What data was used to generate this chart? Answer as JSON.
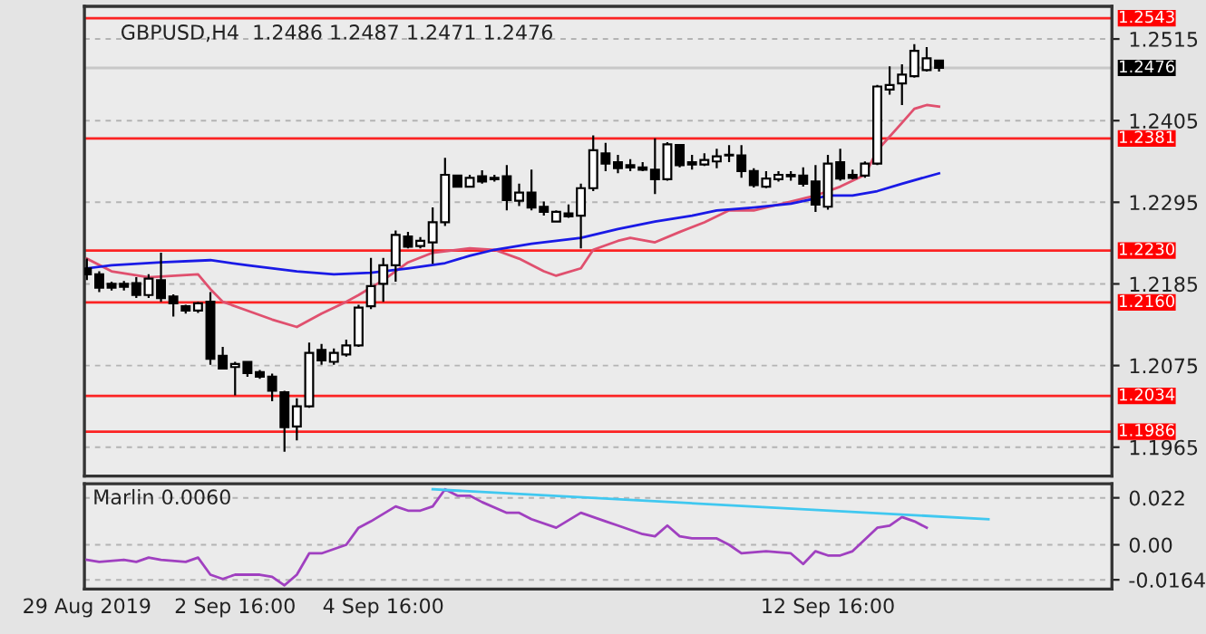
{
  "chart_data": [
    {
      "type": "candlestick",
      "title": "GBPUSD,H4  1.2486 1.2487 1.2471 1.2476",
      "categories": [
        null,
        null,
        null,
        null,
        null,
        null,
        null,
        null,
        null,
        null,
        null,
        null,
        null,
        null,
        null,
        null,
        null,
        null,
        null,
        null,
        null,
        null,
        null,
        null,
        null,
        null,
        null,
        null,
        null,
        null,
        null,
        null,
        null,
        null,
        null,
        null,
        null,
        null,
        null,
        null,
        null,
        null,
        null,
        null,
        null,
        null,
        null,
        null,
        null,
        null,
        null,
        null,
        null,
        null,
        null,
        null,
        null,
        null,
        null,
        null,
        null,
        null,
        null,
        null,
        null,
        null,
        null,
        null,
        null,
        null,
        null,
        null,
        null,
        null,
        null,
        null,
        null,
        null,
        null,
        null,
        null,
        null,
        null,
        null
      ],
      "ohlc": [
        [
          1.2206,
          1.2219,
          1.219,
          1.2198
        ],
        [
          1.2198,
          1.2202,
          1.2174,
          1.218
        ],
        [
          1.2185,
          1.2188,
          1.2176,
          1.218
        ],
        [
          1.2185,
          1.2189,
          1.2176,
          1.2181
        ],
        [
          1.2186,
          1.2194,
          1.2166,
          1.217
        ],
        [
          1.217,
          1.2198,
          1.2166,
          1.2192
        ],
        [
          1.219,
          1.2227,
          1.2161,
          1.2166
        ],
        [
          1.2168,
          1.2171,
          1.2141,
          1.2159
        ],
        [
          1.2155,
          1.2157,
          1.2145,
          1.2149
        ],
        [
          1.2149,
          1.2161,
          1.2146,
          1.2159
        ],
        [
          1.2161,
          1.2174,
          1.2076,
          1.2084
        ],
        [
          1.2088,
          1.21,
          1.207,
          1.2071
        ],
        [
          1.2073,
          1.208,
          1.2035,
          1.2077
        ],
        [
          1.208,
          1.208,
          1.206,
          1.2065
        ],
        [
          1.2066,
          1.2069,
          1.2057,
          1.206
        ],
        [
          1.206,
          1.2064,
          1.2027,
          1.2041
        ],
        [
          1.2039,
          1.2041,
          1.1959,
          1.1992
        ],
        [
          1.1993,
          1.2031,
          1.1974,
          1.202
        ],
        [
          1.202,
          1.2106,
          1.2018,
          1.2092
        ],
        [
          1.2096,
          1.2104,
          1.2076,
          1.2082
        ],
        [
          1.208,
          1.2098,
          1.2076,
          1.2092
        ],
        [
          1.209,
          1.211,
          1.2087,
          1.2102
        ],
        [
          1.2102,
          1.2157,
          1.21,
          1.2153
        ],
        [
          1.2155,
          1.222,
          1.2151,
          1.2182
        ],
        [
          1.2185,
          1.222,
          1.2161,
          1.221
        ],
        [
          1.221,
          1.2257,
          1.2188,
          1.2251
        ],
        [
          1.2249,
          1.2255,
          1.2233,
          1.2235
        ],
        [
          1.2236,
          1.2248,
          1.2233,
          1.2243
        ],
        [
          1.2241,
          1.2288,
          1.2212,
          1.2268
        ],
        [
          1.2268,
          1.2355,
          1.2263,
          1.2332
        ],
        [
          1.2331,
          1.2332,
          1.2315,
          1.2316
        ],
        [
          1.2316,
          1.2332,
          1.2315,
          1.2328
        ],
        [
          1.233,
          1.2338,
          1.232,
          1.2323
        ],
        [
          1.2328,
          1.2332,
          1.2323,
          1.2326
        ],
        [
          1.233,
          1.2345,
          1.2284,
          1.2298
        ],
        [
          1.2297,
          1.232,
          1.229,
          1.2308
        ],
        [
          1.2308,
          1.2339,
          1.2284,
          1.2288
        ],
        [
          1.2289,
          1.2296,
          1.2277,
          1.2282
        ],
        [
          1.2269,
          1.2284,
          1.2268,
          1.2282
        ],
        [
          1.228,
          1.2292,
          1.2274,
          1.2276
        ],
        [
          1.2277,
          1.232,
          1.2233,
          1.2314
        ],
        [
          1.2314,
          1.2385,
          1.231,
          1.2365
        ],
        [
          1.2361,
          1.2375,
          1.2337,
          1.2347
        ],
        [
          1.2349,
          1.2359,
          1.2334,
          1.2341
        ],
        [
          1.2345,
          1.2353,
          1.2337,
          1.2342
        ],
        [
          1.2342,
          1.2349,
          1.2337,
          1.2339
        ],
        [
          1.2339,
          1.2381,
          1.2306,
          1.2326
        ],
        [
          1.2326,
          1.2376,
          1.2324,
          1.2373
        ],
        [
          1.2372,
          1.2373,
          1.2342,
          1.2345
        ],
        [
          1.2349,
          1.2359,
          1.2339,
          1.2346
        ],
        [
          1.2346,
          1.2361,
          1.2344,
          1.2352
        ],
        [
          1.235,
          1.2367,
          1.2341,
          1.2357
        ],
        [
          1.2358,
          1.2372,
          1.2349,
          1.2359
        ],
        [
          1.2358,
          1.2372,
          1.2328,
          1.2337
        ],
        [
          1.2337,
          1.2341,
          1.2315,
          1.2318
        ],
        [
          1.2316,
          1.2337,
          1.2314,
          1.2327
        ],
        [
          1.2326,
          1.2337,
          1.2323,
          1.2332
        ],
        [
          1.2332,
          1.2337,
          1.2324,
          1.233
        ],
        [
          1.2331,
          1.2342,
          1.2316,
          1.232
        ],
        [
          1.2323,
          1.2345,
          1.2282,
          1.2292
        ],
        [
          1.2289,
          1.2359,
          1.2285,
          1.2347
        ],
        [
          1.2349,
          1.2367,
          1.2324,
          1.2327
        ],
        [
          1.2332,
          1.2339,
          1.2326,
          1.2328
        ],
        [
          1.2331,
          1.235,
          1.2328,
          1.2347
        ],
        [
          1.2347,
          1.2453,
          1.2345,
          1.2451
        ],
        [
          1.2447,
          1.2478,
          1.244,
          1.2453
        ],
        [
          1.2455,
          1.2481,
          1.2426,
          1.2467
        ],
        [
          1.2465,
          1.2508,
          1.2463,
          1.2499
        ],
        [
          1.2473,
          1.2504,
          1.2471,
          1.2489
        ],
        [
          1.2486,
          1.2487,
          1.2471,
          1.2476
        ],
        null,
        null,
        null,
        null,
        null,
        null,
        null,
        null,
        null,
        null,
        null,
        null,
        null,
        null
      ],
      "series": [
        {
          "type": "line",
          "color": "#e0506e",
          "values": [
            1.2219,
            null,
            1.2202,
            null,
            null,
            1.2194,
            null,
            null,
            null,
            1.2198,
            1.2178,
            1.2161,
            null,
            1.2149,
            null,
            1.2137,
            null,
            1.2127,
            null,
            1.2145,
            null,
            1.2161,
            1.217,
            null,
            1.219,
            null,
            1.2214,
            null,
            1.2227,
            null,
            null,
            1.2233,
            null,
            1.2231,
            null,
            1.2219,
            null,
            1.2202,
            1.2196,
            null,
            1.2206,
            1.2231,
            null,
            1.2243,
            1.2247,
            null,
            1.2241,
            null,
            1.2255,
            null,
            1.2268,
            null,
            1.2284,
            null,
            1.2284,
            null,
            null,
            1.2296,
            null,
            1.2304,
            null,
            1.2316,
            null,
            1.2332,
            1.2365,
            null,
            1.2402,
            1.2421,
            1.2426,
            1.2424,
            null,
            null,
            null,
            null,
            null,
            null,
            null,
            null,
            null,
            null,
            null,
            null,
            null,
            null
          ]
        },
        {
          "type": "line",
          "color": "#1a1ae6",
          "values": [
            1.2206,
            null,
            1.221,
            null,
            null,
            null,
            1.2214,
            null,
            null,
            null,
            1.2217,
            null,
            null,
            1.221,
            null,
            null,
            null,
            1.2202,
            null,
            null,
            1.2198,
            null,
            null,
            1.22,
            null,
            null,
            1.2206,
            null,
            null,
            1.2213,
            null,
            1.2223,
            null,
            1.2231,
            null,
            null,
            1.2239,
            null,
            null,
            null,
            1.2247,
            null,
            null,
            1.2259,
            null,
            null,
            1.2269,
            null,
            null,
            1.2277,
            null,
            1.2284,
            null,
            null,
            1.2288,
            null,
            null,
            1.2293,
            null,
            1.23,
            1.2304,
            null,
            1.2304,
            null,
            1.231,
            null,
            1.232,
            null,
            null,
            1.2334,
            null,
            null,
            null,
            null,
            null,
            null,
            null,
            null,
            null,
            null,
            null,
            null,
            null,
            null
          ]
        }
      ],
      "ref_lines": [
        {
          "axis": "y",
          "value": 1.2543,
          "label": "1.2543",
          "color": "#ff0000"
        },
        {
          "axis": "y",
          "value": 1.2381,
          "label": "1.2381",
          "color": "#ff0000"
        },
        {
          "axis": "y",
          "value": 1.223,
          "label": "1.2230",
          "color": "#ff0000"
        },
        {
          "axis": "y",
          "value": 1.216,
          "label": "1.2160",
          "color": "#ff0000"
        },
        {
          "axis": "y",
          "value": 1.2034,
          "label": "1.2034",
          "color": "#ff0000"
        },
        {
          "axis": "y",
          "value": 1.1986,
          "label": "1.1986",
          "color": "#ff0000"
        },
        {
          "axis": "y",
          "value": 1.2476,
          "label": "1.2476",
          "color": "#000000"
        }
      ],
      "ylim": [
        1.1926,
        1.2559
      ],
      "yticks": [
        1.1965,
        1.2075,
        1.2185,
        1.2295,
        1.2405,
        1.2515
      ],
      "grid": true,
      "tick_labels": "y"
    },
    {
      "type": "line",
      "annotations": [
        "Marlin 0.0060"
      ],
      "categories": [
        "29 Aug 2019",
        null,
        null,
        null,
        null,
        null,
        null,
        null,
        null,
        null,
        null,
        null,
        "2 Sep 16:00",
        null,
        null,
        null,
        null,
        null,
        null,
        null,
        null,
        null,
        null,
        null,
        "4 Sep 16:00",
        null,
        null,
        null,
        null,
        null,
        null,
        null,
        null,
        null,
        null,
        null,
        null,
        null,
        null,
        null,
        null,
        null,
        null,
        null,
        null,
        null,
        null,
        null,
        null,
        null,
        null,
        null,
        null,
        null,
        null,
        null,
        null,
        null,
        null,
        null,
        "12 Sep 16:00",
        null,
        null,
        null,
        null,
        null,
        null,
        null,
        null,
        null,
        null,
        null,
        null,
        null,
        null,
        null,
        null,
        null,
        null,
        null,
        null,
        null,
        null,
        null
      ],
      "series": [
        {
          "color": "#a040c0",
          "values": [
            -0.007,
            -0.008,
            null,
            -0.007,
            -0.008,
            -0.006,
            -0.007,
            null,
            -0.008,
            -0.006,
            -0.014,
            -0.016,
            -0.014,
            null,
            -0.014,
            -0.015,
            -0.019,
            -0.014,
            -0.004,
            -0.004,
            null,
            0.0,
            0.008,
            0.011,
            null,
            0.018,
            0.016,
            0.016,
            0.018,
            0.026,
            0.023,
            0.023,
            0.02,
            null,
            0.015,
            0.015,
            0.012,
            null,
            0.008,
            null,
            0.015,
            null,
            0.011,
            0.009,
            null,
            0.005,
            0.004,
            0.009,
            0.004,
            0.003,
            null,
            0.003,
            0.0,
            -0.004,
            null,
            -0.003,
            null,
            -0.004,
            -0.009,
            -0.003,
            -0.005,
            -0.005,
            -0.003,
            null,
            0.008,
            0.009,
            0.013,
            0.011,
            0.008,
            null,
            null,
            null,
            null,
            null,
            null,
            null,
            null,
            null,
            null,
            null,
            null,
            null,
            null,
            null
          ]
        },
        {
          "color": "#40c8f0",
          "values": [
            null,
            null,
            null,
            null,
            null,
            null,
            null,
            null,
            null,
            null,
            null,
            null,
            null,
            null,
            null,
            null,
            null,
            null,
            null,
            null,
            null,
            null,
            null,
            null,
            null,
            null,
            null,
            null,
            0.026,
            null,
            null,
            null,
            null,
            null,
            null,
            null,
            null,
            null,
            null,
            null,
            null,
            null,
            null,
            null,
            null,
            null,
            null,
            null,
            null,
            null,
            null,
            null,
            null,
            null,
            null,
            null,
            null,
            null,
            null,
            null,
            null,
            null,
            null,
            null,
            null,
            null,
            null,
            null,
            null,
            null,
            null,
            null,
            null,
            0.012,
            null,
            null,
            null,
            null,
            null,
            null,
            null,
            null,
            null,
            null
          ]
        }
      ],
      "ylim": [
        -0.0207,
        0.0286
      ],
      "yticks": [
        {
          "value": -0.0164,
          "label": "-0.0164"
        },
        {
          "value": 0,
          "label": "0.00"
        },
        0.022
      ],
      "grid": true
    }
  ]
}
